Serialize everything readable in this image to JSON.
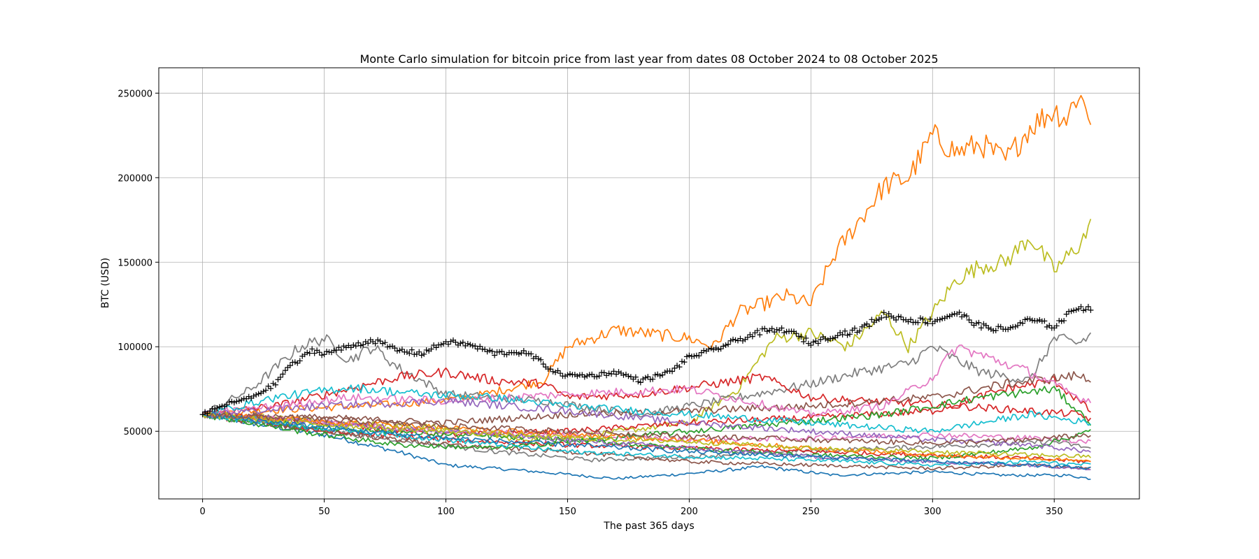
{
  "chart_data": {
    "type": "line",
    "title": "Monte Carlo simulation for bitcoin price from last year from dates 08 October 2024 to 08 October 2025",
    "xlabel": "The past 365 days",
    "ylabel": "BTC (USD)",
    "xlim": [
      -18,
      385
    ],
    "ylim": [
      10000,
      265000
    ],
    "xticks": [
      0,
      50,
      100,
      150,
      200,
      250,
      300,
      350
    ],
    "yticks": [
      50000,
      100000,
      150000,
      200000,
      250000
    ],
    "grid": true,
    "simulation_colors": [
      "#1f77b4",
      "#ff7f0e",
      "#2ca02c",
      "#d62728",
      "#9467bd",
      "#8c564b",
      "#e377c2",
      "#7f7f7f",
      "#bcbd22",
      "#17becf"
    ],
    "simulations": [
      {
        "color": "#1f77b4",
        "x": [
          0,
          20,
          50,
          80,
          100,
          130,
          170,
          200,
          230,
          260,
          300,
          330,
          355,
          365
        ],
        "y": [
          60000,
          55000,
          48000,
          38000,
          30000,
          27000,
          22000,
          25000,
          29000,
          24000,
          26000,
          24000,
          24000,
          22000
        ]
      },
      {
        "color": "#ff7f0e",
        "x": [
          0,
          20,
          50,
          80,
          110,
          140,
          150,
          170,
          200,
          210,
          220,
          240,
          250,
          260,
          270,
          280,
          290,
          300,
          310,
          320,
          330,
          340,
          350,
          355,
          360,
          365
        ],
        "y": [
          60000,
          62000,
          64000,
          66000,
          70000,
          80000,
          100000,
          110000,
          105000,
          100000,
          120000,
          130000,
          125000,
          155000,
          175000,
          195000,
          200000,
          225000,
          215000,
          220000,
          210000,
          230000,
          240000,
          235000,
          250000,
          235000
        ]
      },
      {
        "color": "#bcbd22",
        "x": [
          0,
          30,
          60,
          100,
          130,
          160,
          200,
          220,
          235,
          250,
          265,
          280,
          290,
          300,
          310,
          320,
          330,
          340,
          350,
          360,
          365
        ],
        "y": [
          60000,
          58000,
          55000,
          52000,
          45000,
          48000,
          55000,
          75000,
          105000,
          108000,
          100000,
          120000,
          100000,
          120000,
          140000,
          148000,
          150000,
          165000,
          145000,
          160000,
          171000
        ]
      },
      {
        "color": "#7f7f7f",
        "x": [
          0,
          20,
          40,
          50,
          60,
          70,
          80,
          100,
          140,
          180,
          220,
          250,
          270,
          290,
          300,
          310,
          320,
          340,
          350,
          360,
          365
        ],
        "y": [
          60000,
          75000,
          100000,
          105000,
          92000,
          100000,
          88000,
          72000,
          68000,
          60000,
          70000,
          78000,
          85000,
          90000,
          100000,
          92000,
          85000,
          80000,
          105000,
          102000,
          107000
        ]
      },
      {
        "color": "#7f7f7f",
        "x": [
          0,
          40,
          80,
          120,
          160,
          200,
          240,
          280,
          320,
          350,
          365
        ],
        "y": [
          60000,
          52000,
          45000,
          38000,
          33000,
          35000,
          38000,
          40000,
          42000,
          44000,
          40000
        ]
      },
      {
        "color": "#d62728",
        "x": [
          0,
          30,
          60,
          80,
          100,
          120,
          140,
          150,
          180,
          210,
          230,
          250,
          270,
          300,
          330,
          360,
          365
        ],
        "y": [
          60000,
          65000,
          75000,
          82000,
          85000,
          80000,
          78000,
          70000,
          72000,
          78000,
          82000,
          70000,
          68000,
          66000,
          63000,
          60000,
          57000
        ]
      },
      {
        "color": "#d62728",
        "x": [
          0,
          50,
          100,
          150,
          200,
          250,
          300,
          330,
          350,
          365
        ],
        "y": [
          60000,
          55000,
          48000,
          50000,
          55000,
          58000,
          62000,
          75000,
          80000,
          62000
        ]
      },
      {
        "color": "#d62728",
        "x": [
          0,
          50,
          100,
          150,
          200,
          250,
          300,
          340,
          365
        ],
        "y": [
          60000,
          50000,
          45000,
          42000,
          40000,
          38000,
          36000,
          34000,
          32000
        ]
      },
      {
        "color": "#8c564b",
        "x": [
          0,
          50,
          100,
          150,
          200,
          250,
          300,
          330,
          360,
          365
        ],
        "y": [
          60000,
          58000,
          55000,
          60000,
          62000,
          65000,
          70000,
          78000,
          83000,
          80000
        ]
      },
      {
        "color": "#8c564b",
        "x": [
          0,
          50,
          100,
          150,
          200,
          250,
          300,
          340,
          365
        ],
        "y": [
          60000,
          50000,
          42000,
          38000,
          32000,
          30000,
          28000,
          30000,
          28000
        ]
      },
      {
        "color": "#e377c2",
        "x": [
          0,
          30,
          60,
          100,
          150,
          200,
          250,
          280,
          300,
          310,
          320,
          340,
          360,
          365
        ],
        "y": [
          60000,
          65000,
          70000,
          68000,
          72000,
          75000,
          60000,
          65000,
          82000,
          100000,
          95000,
          85000,
          70000,
          68000
        ]
      },
      {
        "color": "#e377c2",
        "x": [
          0,
          50,
          100,
          150,
          200,
          250,
          300,
          340,
          365
        ],
        "y": [
          60000,
          55000,
          50000,
          48000,
          45000,
          46000,
          48000,
          46000,
          44000
        ]
      },
      {
        "color": "#2ca02c",
        "x": [
          0,
          40,
          80,
          120,
          160,
          200,
          240,
          280,
          320,
          350,
          365
        ],
        "y": [
          60000,
          50000,
          42000,
          40000,
          45000,
          50000,
          55000,
          60000,
          70000,
          75000,
          55000
        ]
      },
      {
        "color": "#2ca02c",
        "x": [
          0,
          50,
          100,
          150,
          200,
          250,
          300,
          340,
          365
        ],
        "y": [
          60000,
          52000,
          48000,
          45000,
          40000,
          36000,
          34000,
          40000,
          50000
        ]
      },
      {
        "color": "#17becf",
        "x": [
          0,
          30,
          60,
          90,
          120,
          150,
          200,
          250,
          300,
          340,
          365
        ],
        "y": [
          60000,
          70000,
          76000,
          72000,
          70000,
          65000,
          60000,
          55000,
          50000,
          60000,
          55000
        ]
      },
      {
        "color": "#17becf",
        "x": [
          0,
          50,
          100,
          150,
          200,
          250,
          300,
          340,
          365
        ],
        "y": [
          60000,
          52000,
          45000,
          38000,
          35000,
          33000,
          30000,
          32000,
          30000
        ]
      },
      {
        "color": "#9467bd",
        "x": [
          0,
          50,
          100,
          150,
          200,
          250,
          300,
          340,
          365
        ],
        "y": [
          60000,
          65000,
          68000,
          62000,
          55000,
          50000,
          45000,
          42000,
          38000
        ]
      },
      {
        "color": "#9467bd",
        "x": [
          0,
          50,
          100,
          150,
          200,
          250,
          300,
          340,
          365
        ],
        "y": [
          60000,
          55000,
          50000,
          45000,
          40000,
          35000,
          32000,
          30000,
          28000
        ]
      },
      {
        "color": "#ff7f0e",
        "x": [
          0,
          50,
          100,
          150,
          200,
          250,
          300,
          340,
          365
        ],
        "y": [
          60000,
          56000,
          52000,
          48000,
          45000,
          40000,
          36000,
          34000,
          32000
        ]
      },
      {
        "color": "#bcbd22",
        "x": [
          0,
          50,
          100,
          150,
          200,
          250,
          300,
          340,
          365
        ],
        "y": [
          60000,
          54000,
          50000,
          46000,
          44000,
          40000,
          38000,
          36000,
          35000
        ]
      },
      {
        "color": "#1f77b4",
        "x": [
          0,
          50,
          100,
          150,
          200,
          250,
          300,
          340,
          365
        ],
        "y": [
          60000,
          52000,
          46000,
          42000,
          38000,
          35000,
          32000,
          30000,
          28000
        ]
      },
      {
        "color": "#8c564b",
        "x": [
          0,
          50,
          100,
          150,
          200,
          250,
          300,
          340,
          365
        ],
        "y": [
          60000,
          57000,
          53000,
          50000,
          47000,
          45000,
          43000,
          45000,
          48000
        ]
      }
    ],
    "actual": {
      "marker": "+",
      "color": "#000000",
      "x": [
        0,
        10,
        20,
        30,
        35,
        40,
        45,
        50,
        60,
        70,
        80,
        90,
        100,
        110,
        120,
        130,
        135,
        140,
        145,
        150,
        160,
        170,
        180,
        190,
        195,
        200,
        210,
        220,
        230,
        240,
        250,
        260,
        270,
        280,
        290,
        300,
        310,
        320,
        330,
        340,
        350,
        360,
        365
      ],
      "y": [
        60000,
        66000,
        70000,
        78000,
        88000,
        92000,
        98000,
        96000,
        100000,
        104000,
        98000,
        96000,
        103000,
        101000,
        96000,
        97000,
        95000,
        90000,
        85000,
        83000,
        83000,
        85000,
        80000,
        84000,
        88000,
        94000,
        98000,
        104000,
        109000,
        110000,
        102000,
        107000,
        110000,
        119000,
        116000,
        115000,
        120000,
        112000,
        110000,
        116000,
        112000,
        124000,
        122000
      ]
    }
  }
}
